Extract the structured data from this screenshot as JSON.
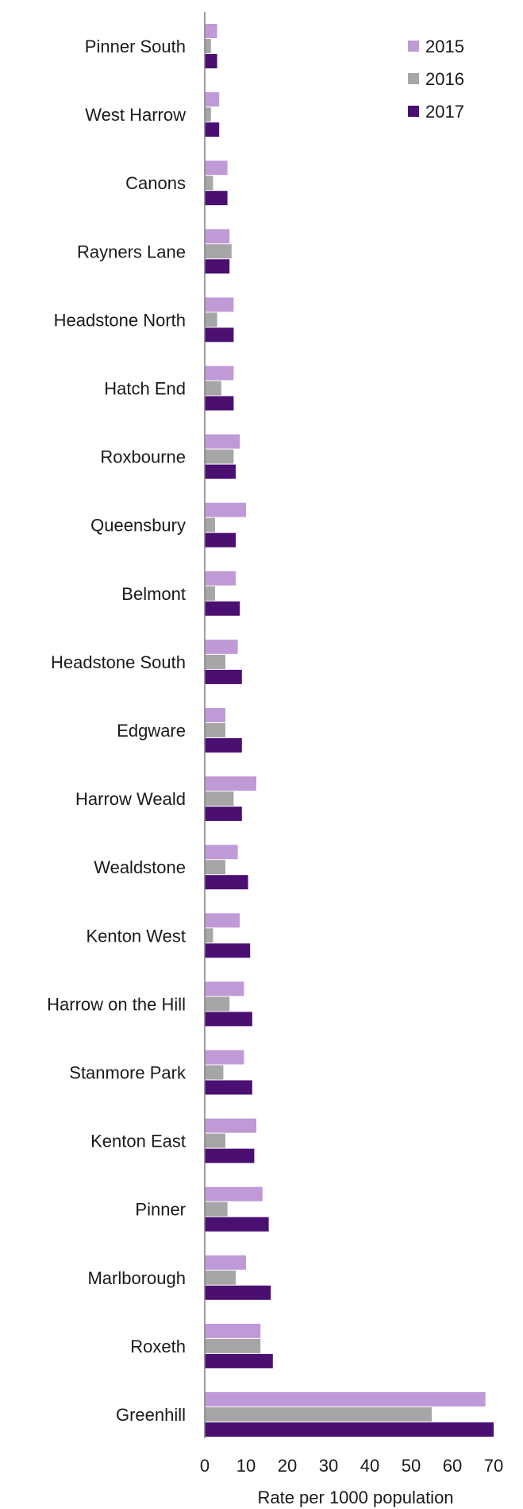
{
  "chart_data": {
    "type": "bar",
    "orientation": "horizontal",
    "categories": [
      "Pinner South",
      "West Harrow",
      "Canons",
      "Rayners Lane",
      "Headstone North",
      "Hatch End",
      "Roxbourne",
      "Queensbury",
      "Belmont",
      "Headstone South",
      "Edgware",
      "Harrow Weald",
      "Wealdstone",
      "Kenton West",
      "Harrow on the Hill",
      "Stanmore Park",
      "Kenton East",
      "Pinner",
      "Marlborough",
      "Roxeth",
      "Greenhill"
    ],
    "series": [
      {
        "name": "2015",
        "color": "#c09ad6",
        "values": [
          3.0,
          3.5,
          5.5,
          6.0,
          7.0,
          7.0,
          8.5,
          10.0,
          7.5,
          8.0,
          5.0,
          12.5,
          8.0,
          8.5,
          9.5,
          9.5,
          12.5,
          14.0,
          10.0,
          13.5,
          68.0
        ]
      },
      {
        "name": "2016",
        "color": "#a6a6a6",
        "values": [
          1.5,
          1.5,
          2.0,
          6.5,
          3.0,
          4.0,
          7.0,
          2.5,
          2.5,
          5.0,
          5.0,
          7.0,
          5.0,
          2.0,
          6.0,
          4.5,
          5.0,
          5.5,
          7.5,
          13.5,
          55.0
        ]
      },
      {
        "name": "2017",
        "color": "#4b0f72",
        "values": [
          3.0,
          3.5,
          5.5,
          6.0,
          7.0,
          7.0,
          7.5,
          7.5,
          8.5,
          9.0,
          9.0,
          9.0,
          10.5,
          11.0,
          11.5,
          11.5,
          12.0,
          15.5,
          16.0,
          16.5,
          70.0
        ]
      }
    ],
    "xlabel": "Rate per 1000 population",
    "xlim": [
      0,
      70
    ],
    "xticks": [
      0,
      10,
      20,
      30,
      40,
      50,
      60,
      70
    ],
    "grid": false,
    "legend_position": "top-right"
  }
}
